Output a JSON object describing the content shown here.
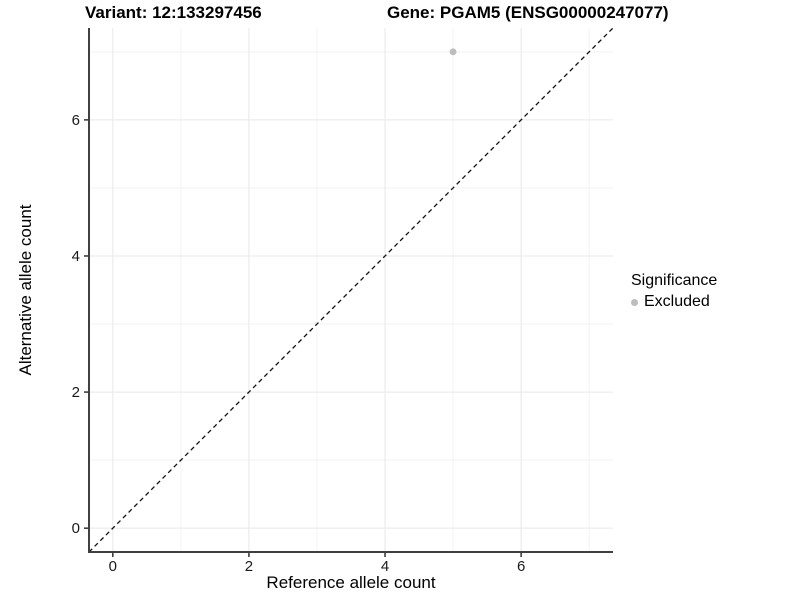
{
  "chart_data": {
    "type": "scatter",
    "title_left": "Variant: 12:133297456",
    "title_right": "Gene: PGAM5 (ENSG00000247077)",
    "xlabel": "Reference allele count",
    "ylabel": "Alternative allele count",
    "xlim": [
      -0.35,
      7.35
    ],
    "ylim": [
      -0.35,
      7.35
    ],
    "x_major_ticks": [
      0,
      2,
      4,
      6
    ],
    "y_major_ticks": [
      0,
      2,
      4,
      6
    ],
    "x_minor_gridlines": [
      1,
      3,
      5,
      7
    ],
    "y_minor_gridlines": [
      1,
      3,
      5,
      7
    ],
    "grid": "on",
    "series": [
      {
        "name": "Excluded",
        "color": "#bdbdbd",
        "points": [
          {
            "x": 5,
            "y": 7
          }
        ]
      }
    ],
    "reference_line": {
      "type": "identity",
      "style": "dashed",
      "color": "#111111"
    },
    "legend": {
      "title": "Significance",
      "position": "right",
      "items": [
        {
          "label": "Excluded",
          "color": "#bdbdbd"
        }
      ]
    },
    "colors": {
      "background": "#ffffff",
      "gridline_major": "#e8e8e8",
      "gridline_minor": "#f3f3f3",
      "axis_line": "#404040",
      "tick_mark": "#333333",
      "tick_label": "#1a1a1a"
    }
  }
}
